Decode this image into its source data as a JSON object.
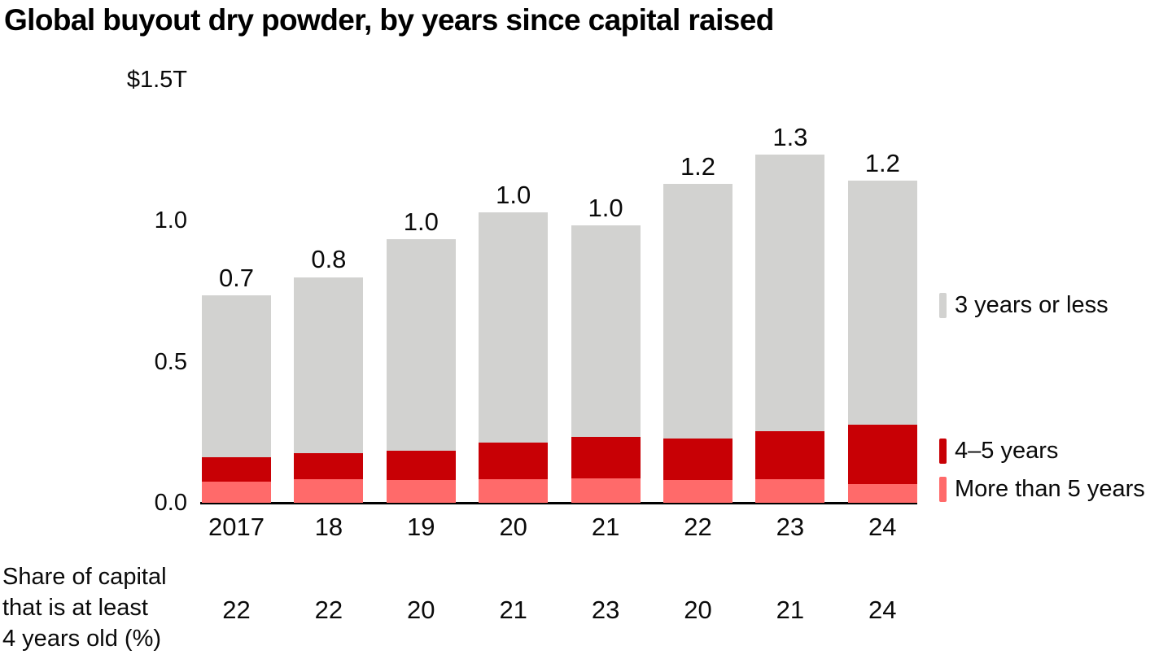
{
  "title": "Global buyout dry powder, by years since capital raised",
  "chart_data": {
    "type": "bar",
    "stacked": true,
    "unit": "USD trillions",
    "categories": [
      "2017",
      "18",
      "19",
      "20",
      "21",
      "22",
      "23",
      "24"
    ],
    "series": [
      {
        "name": "3 years or less",
        "color": "#d2d2d0",
        "values": [
          0.574,
          0.624,
          0.748,
          0.815,
          0.75,
          0.902,
          0.98,
          0.865
        ]
      },
      {
        "name": "4–5 years",
        "color": "#c80005",
        "values": [
          0.086,
          0.092,
          0.104,
          0.13,
          0.147,
          0.147,
          0.17,
          0.21
        ]
      },
      {
        "name": "More than 5 years",
        "color": "#ff6a6a",
        "values": [
          0.075,
          0.084,
          0.081,
          0.084,
          0.086,
          0.081,
          0.084,
          0.066
        ]
      }
    ],
    "total_labels": [
      "0.7",
      "0.8",
      "1.0",
      "1.0",
      "1.0",
      "1.2",
      "1.3",
      "1.2"
    ],
    "y_axis": {
      "range": [
        0,
        1.5
      ],
      "ticks": [
        {
          "value": 1.5,
          "label": "$1.5T"
        },
        {
          "value": 1.0,
          "label": "1.0"
        },
        {
          "value": 0.5,
          "label": "0.5"
        },
        {
          "value": 0.0,
          "label": "0.0"
        }
      ]
    },
    "legend_position": "right",
    "grid": false,
    "share_row": {
      "caption": "Share of capital\nthat is at least\n4 years old (%)",
      "values": [
        "22",
        "22",
        "20",
        "21",
        "23",
        "20",
        "21",
        "24"
      ]
    }
  }
}
